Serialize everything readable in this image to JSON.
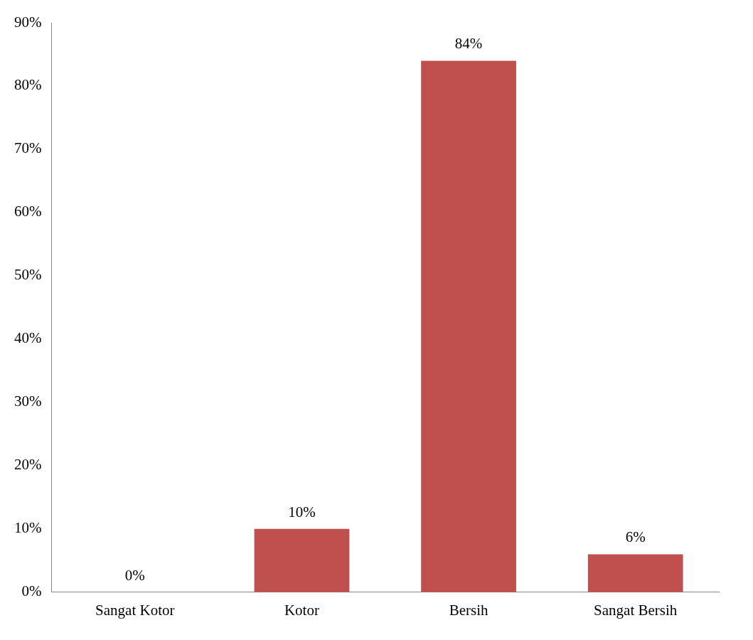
{
  "chart_data": {
    "type": "bar",
    "categories": [
      "Sangat Kotor",
      "Kotor",
      "Bersih",
      "Sangat Bersih"
    ],
    "values": [
      0,
      10,
      84,
      6
    ],
    "value_labels": [
      "0%",
      "10%",
      "84%",
      "6%"
    ],
    "color": "#c0504d",
    "ylim": [
      0,
      90
    ],
    "yticks": [
      {
        "value": 0,
        "label": "0%"
      },
      {
        "value": 10,
        "label": "10%"
      },
      {
        "value": 20,
        "label": "20%"
      },
      {
        "value": 30,
        "label": "30%"
      },
      {
        "value": 40,
        "label": "40%"
      },
      {
        "value": 50,
        "label": "50%"
      },
      {
        "value": 60,
        "label": "60%"
      },
      {
        "value": 70,
        "label": "70%"
      },
      {
        "value": 80,
        "label": "80%"
      },
      {
        "value": 90,
        "label": "90%"
      }
    ],
    "grid": false,
    "legend": false
  }
}
